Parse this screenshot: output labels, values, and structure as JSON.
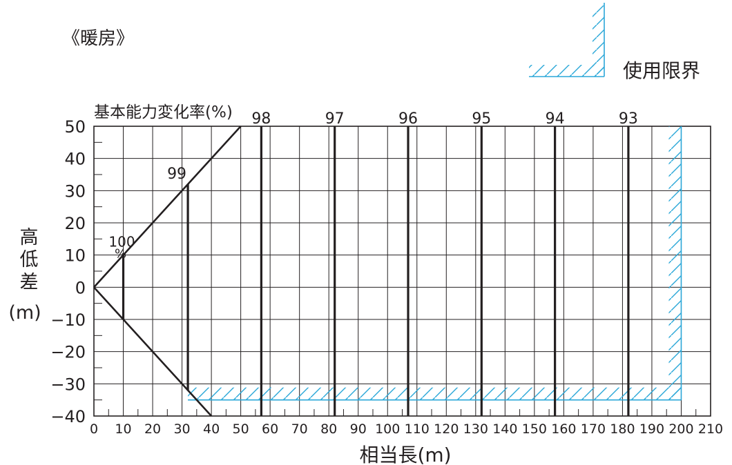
{
  "title": "《暖房》",
  "legend": {
    "label": "使用限界",
    "color": "#2aa7d8"
  },
  "chart_data": {
    "type": "line",
    "top_label": "基本能力変化率(%)",
    "xlabel": "相当長(m)",
    "ylabel": [
      "高",
      "低",
      "差",
      "(m)"
    ],
    "xlim": [
      0,
      210
    ],
    "ylim": [
      -40,
      50
    ],
    "x_ticks": [
      0,
      10,
      20,
      30,
      40,
      50,
      60,
      70,
      80,
      90,
      100,
      110,
      120,
      130,
      140,
      150,
      160,
      170,
      180,
      190,
      200,
      210
    ],
    "y_ticks": [
      50,
      40,
      30,
      20,
      10,
      0,
      -10,
      -20,
      -30,
      -40
    ],
    "y_tick_labels": [
      "50",
      "40",
      "30",
      "20",
      "10",
      "0",
      "−10",
      "−20",
      "−30",
      "−40"
    ],
    "envelope": {
      "upper": [
        [
          0,
          0
        ],
        [
          50,
          50
        ]
      ],
      "lower": [
        [
          0,
          0
        ],
        [
          40,
          -40
        ]
      ]
    },
    "capacity_lines": [
      {
        "label": "100",
        "x": 10,
        "y_range": [
          -10,
          10
        ]
      },
      {
        "label": "99",
        "x": 32,
        "y_range": [
          -32,
          32
        ]
      },
      {
        "label": "98",
        "x": 57,
        "y_range": [
          -40,
          50
        ]
      },
      {
        "label": "97",
        "x": 82,
        "y_range": [
          -40,
          50
        ]
      },
      {
        "label": "96",
        "x": 107,
        "y_range": [
          -40,
          50
        ]
      },
      {
        "label": "95",
        "x": 132,
        "y_range": [
          -40,
          50
        ]
      },
      {
        "label": "94",
        "x": 157,
        "y_range": [
          -40,
          50
        ]
      },
      {
        "label": "93",
        "x": 182,
        "y_range": [
          -40,
          50
        ]
      }
    ],
    "percent_label": "%",
    "usage_limit": {
      "max_length": 200,
      "min_height_diff": -35,
      "max_height_diff": 50,
      "color": "#2aa7d8"
    },
    "grid": true
  }
}
